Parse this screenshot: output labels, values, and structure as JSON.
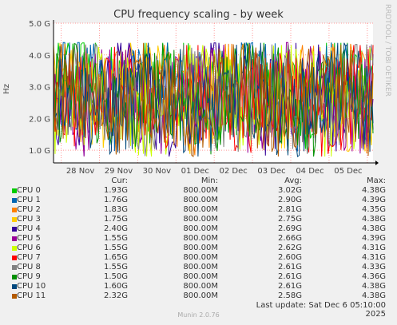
{
  "chart_data": {
    "type": "line",
    "title": "CPU frequency scaling - by week",
    "ylabel": "Hz",
    "y_ticks": [
      "1.0 G",
      "2.0 G",
      "3.0 G",
      "4.0 G",
      "5.0 G"
    ],
    "y_tick_values": [
      1.0,
      2.0,
      3.0,
      4.0,
      5.0
    ],
    "ylim": [
      0.6,
      5.0
    ],
    "x_ticks": [
      "28 Nov",
      "29 Nov",
      "30 Nov",
      "01 Dec",
      "02 Dec",
      "03 Dec",
      "04 Dec",
      "05 Dec"
    ],
    "grid": true,
    "legend_position": "bottom",
    "columns": [
      "Cur:",
      "Min:",
      "Avg:",
      "Max:"
    ],
    "series": [
      {
        "name": "CPU 0",
        "color": "#00cc00",
        "cur": "1.93G",
        "min": "800.00M",
        "avg": "3.02G",
        "max": "4.38G"
      },
      {
        "name": "CPU 1",
        "color": "#0066b3",
        "cur": "1.76G",
        "min": "800.00M",
        "avg": "2.90G",
        "max": "4.39G"
      },
      {
        "name": "CPU 2",
        "color": "#ff8000",
        "cur": "1.83G",
        "min": "800.00M",
        "avg": "2.81G",
        "max": "4.35G"
      },
      {
        "name": "CPU 3",
        "color": "#ffcc00",
        "cur": "1.75G",
        "min": "800.00M",
        "avg": "2.75G",
        "max": "4.38G"
      },
      {
        "name": "CPU 4",
        "color": "#330099",
        "cur": "2.40G",
        "min": "800.00M",
        "avg": "2.69G",
        "max": "4.38G"
      },
      {
        "name": "CPU 5",
        "color": "#990099",
        "cur": "1.55G",
        "min": "800.00M",
        "avg": "2.66G",
        "max": "4.39G"
      },
      {
        "name": "CPU 6",
        "color": "#ccff00",
        "cur": "1.55G",
        "min": "800.00M",
        "avg": "2.62G",
        "max": "4.31G"
      },
      {
        "name": "CPU 7",
        "color": "#ff0000",
        "cur": "1.65G",
        "min": "800.00M",
        "avg": "2.60G",
        "max": "4.31G"
      },
      {
        "name": "CPU 8",
        "color": "#808080",
        "cur": "1.55G",
        "min": "800.00M",
        "avg": "2.61G",
        "max": "4.33G"
      },
      {
        "name": "CPU 9",
        "color": "#008f00",
        "cur": "1.50G",
        "min": "800.00M",
        "avg": "2.61G",
        "max": "4.36G"
      },
      {
        "name": "CPU 10",
        "color": "#00487d",
        "cur": "1.60G",
        "min": "800.00M",
        "avg": "2.61G",
        "max": "4.38G"
      },
      {
        "name": "CPU 11",
        "color": "#b35a00",
        "cur": "2.32G",
        "min": "800.00M",
        "avg": "2.58G",
        "max": "4.38G"
      }
    ]
  },
  "watermark": "RRDTOOL / TOBI OETIKER",
  "last_update": "Last update:  Sat Dec  6 05:10:00 2025",
  "footer": "Munin 2.0.76"
}
